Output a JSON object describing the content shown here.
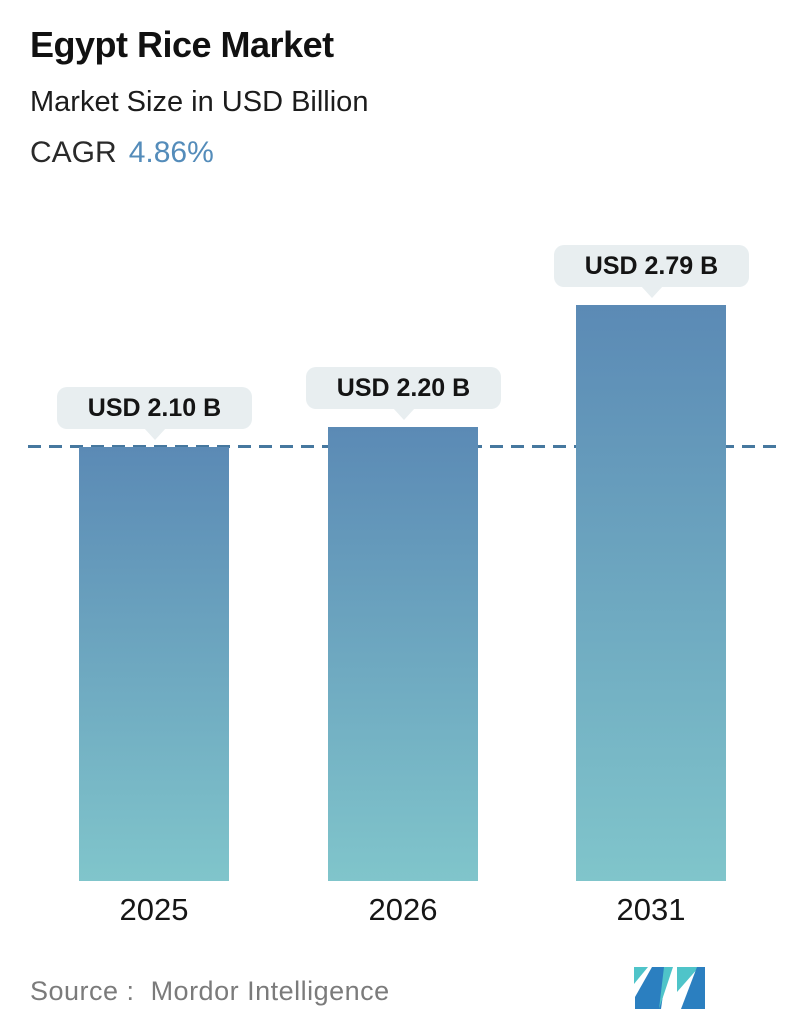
{
  "chart_data": {
    "type": "bar",
    "title": "Egypt Rice Market",
    "subtitle": "Market Size in USD Billion",
    "cagr_label": "CAGR",
    "cagr_value": "4.86%",
    "categories": [
      "2025",
      "2026",
      "2031"
    ],
    "values": [
      2.1,
      2.2,
      2.79
    ],
    "unit": "USD Billion",
    "bar_labels": [
      "USD 2.10 B",
      "USD 2.20 B",
      "USD 2.79 B"
    ],
    "baseline": {
      "value": 2.1,
      "style": "dashed",
      "note": "dashed reference line at 2025 level"
    },
    "ylim": [
      0,
      3.0
    ],
    "grid": false,
    "legend": false,
    "colors": {
      "bar_top": "#5b8ab5",
      "bar_bottom": "#80c5cb",
      "dashed_line": "#46789f",
      "label_bubble_bg": "#e8eef0",
      "cagr_text": "#548cba"
    }
  },
  "footer": {
    "source_label": "Source :",
    "source_value": "Mordor Intelligence",
    "logo": "mordor-intelligence-logo",
    "logo_colors": {
      "teal": "#4fc4c9",
      "blue": "#2b7fc0"
    }
  }
}
